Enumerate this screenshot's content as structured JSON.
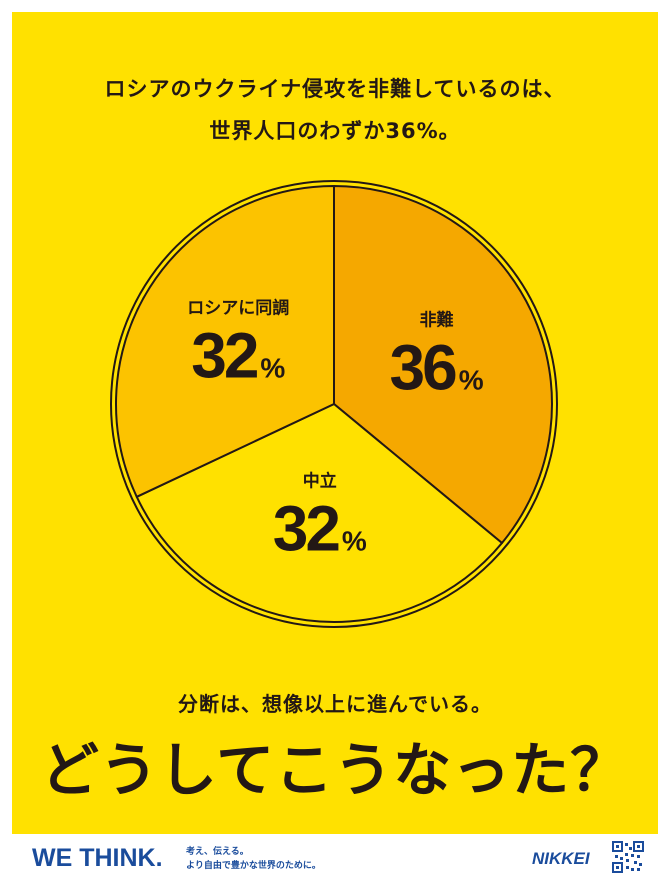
{
  "headline": {
    "line1": "ロシアのウクライナ侵攻を非難しているのは、",
    "line2": "世界人口のわずか36%。"
  },
  "chart_data": {
    "type": "pie",
    "slices": [
      {
        "label": "非難",
        "value": 36,
        "display": "36",
        "color": "#f5a800"
      },
      {
        "label": "中立",
        "value": 32,
        "display": "32",
        "color": "#ffe100"
      },
      {
        "label": "ロシアに同調",
        "value": 32,
        "display": "32",
        "color": "#fcc300"
      }
    ],
    "unit": "%",
    "outline_color": "#231815"
  },
  "subline": "分断は、想像以上に進んでいる。",
  "bigline": "どうしてこうなった？",
  "footer": {
    "brand": "WE THINK.",
    "tagline_1": "考え、伝える。",
    "tagline_2": "より自由で豊かな世界のために。",
    "logo": "NIKKEI"
  },
  "colors": {
    "background": "#ffe100",
    "brand_blue": "#1a4c9c",
    "text": "#231815"
  }
}
